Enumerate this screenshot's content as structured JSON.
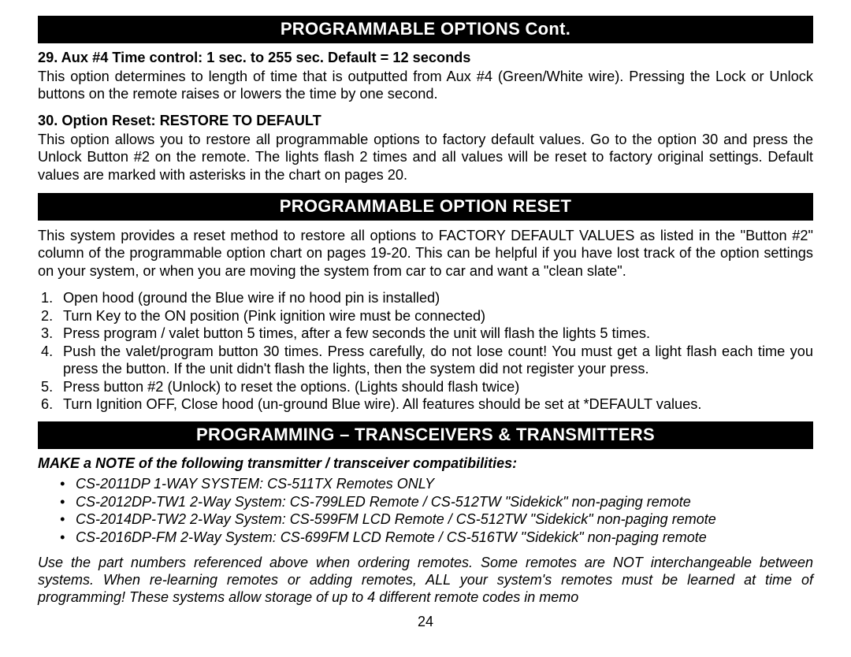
{
  "header1": "PROGRAMMABLE OPTIONS Cont.",
  "opt29": {
    "title": "29. Aux #4 Time control: 1 sec. to 255 sec. Default = 12 seconds",
    "body": "This option determines to length of time that is outputted from Aux #4 (Green/White wire).  Pressing the Lock or Unlock buttons on the remote raises or lowers the time by one second."
  },
  "opt30": {
    "title": "30. Option Reset: RESTORE TO DEFAULT",
    "body": "This option allows you to restore all programmable options to factory default values.  Go to the option 30 and press the Unlock Button #2 on the remote.  The lights flash 2 times and all values will be reset to factory original settings.  Default values are marked with asterisks in the chart on pages 20."
  },
  "header2": "PROGRAMMABLE OPTION RESET",
  "reset_intro": "This system provides a reset method to restore all options to FACTORY DEFAULT VALUES as listed in the \"Button #2\" column of the programmable option chart on pages 19-20.  This can be helpful if you have lost track of the option settings on your system, or when you are moving the system from car to car and want a \"clean slate\".",
  "steps": [
    "Open hood (ground the Blue wire if no hood pin is installed)",
    "Turn Key to the ON position (Pink ignition wire must be connected)",
    "Press program / valet button 5 times, after a few seconds the unit will flash the lights 5 times.",
    "Push the valet/program button 30 times.  Press carefully, do not lose count! You must get a light flash each time you press the button.   If the unit didn't flash the lights, then the system did not register your press.",
    "Press button #2 (Unlock) to reset the options. (Lights should flash twice)",
    "Turn Ignition OFF, Close hood (un-ground Blue wire).  All features should be set at *DEFAULT values."
  ],
  "header3": "PROGRAMMING – TRANSCEIVERS & TRANSMITTERS",
  "compat_note": "MAKE a NOTE of the following transmitter / transceiver compatibilities:",
  "bullets": [
    "CS-2011DP 1-WAY SYSTEM: CS-511TX Remotes ONLY",
    "CS-2012DP-TW1 2-Way System: CS-799LED Remote / CS-512TW \"Sidekick\" non-paging remote",
    "CS-2014DP-TW2 2-Way System: CS-599FM LCD Remote / CS-512TW \"Sidekick\" non-paging remote",
    "CS-2016DP-FM 2-Way System: CS-699FM LCD Remote / CS-516TW \"Sidekick\" non-paging remote"
  ],
  "footnote": "Use the part numbers referenced above when ordering remotes.  Some remotes are NOT interchangeable between systems.  When re-learning remotes or adding remotes, ALL your system's remotes must be learned at time of programming!  These systems allow storage of up to 4 different remote codes in memo",
  "page": "24"
}
